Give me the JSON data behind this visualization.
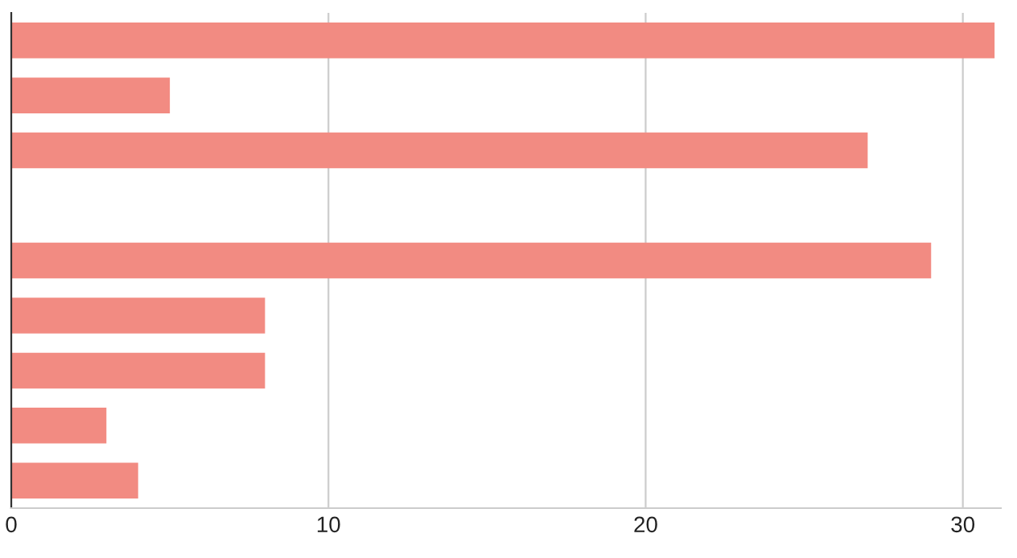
{
  "chart_data": {
    "type": "bar",
    "orientation": "horizontal",
    "categories": [
      null,
      null,
      null,
      null,
      null,
      null,
      null,
      null,
      null
    ],
    "values": [
      31,
      5,
      27,
      null,
      29,
      8,
      8,
      3,
      4
    ],
    "color": "#f28b82",
    "xlim": [
      0,
      31.2
    ],
    "xticks": [
      0,
      10,
      20,
      30
    ],
    "grid": "x",
    "legend": false
  }
}
